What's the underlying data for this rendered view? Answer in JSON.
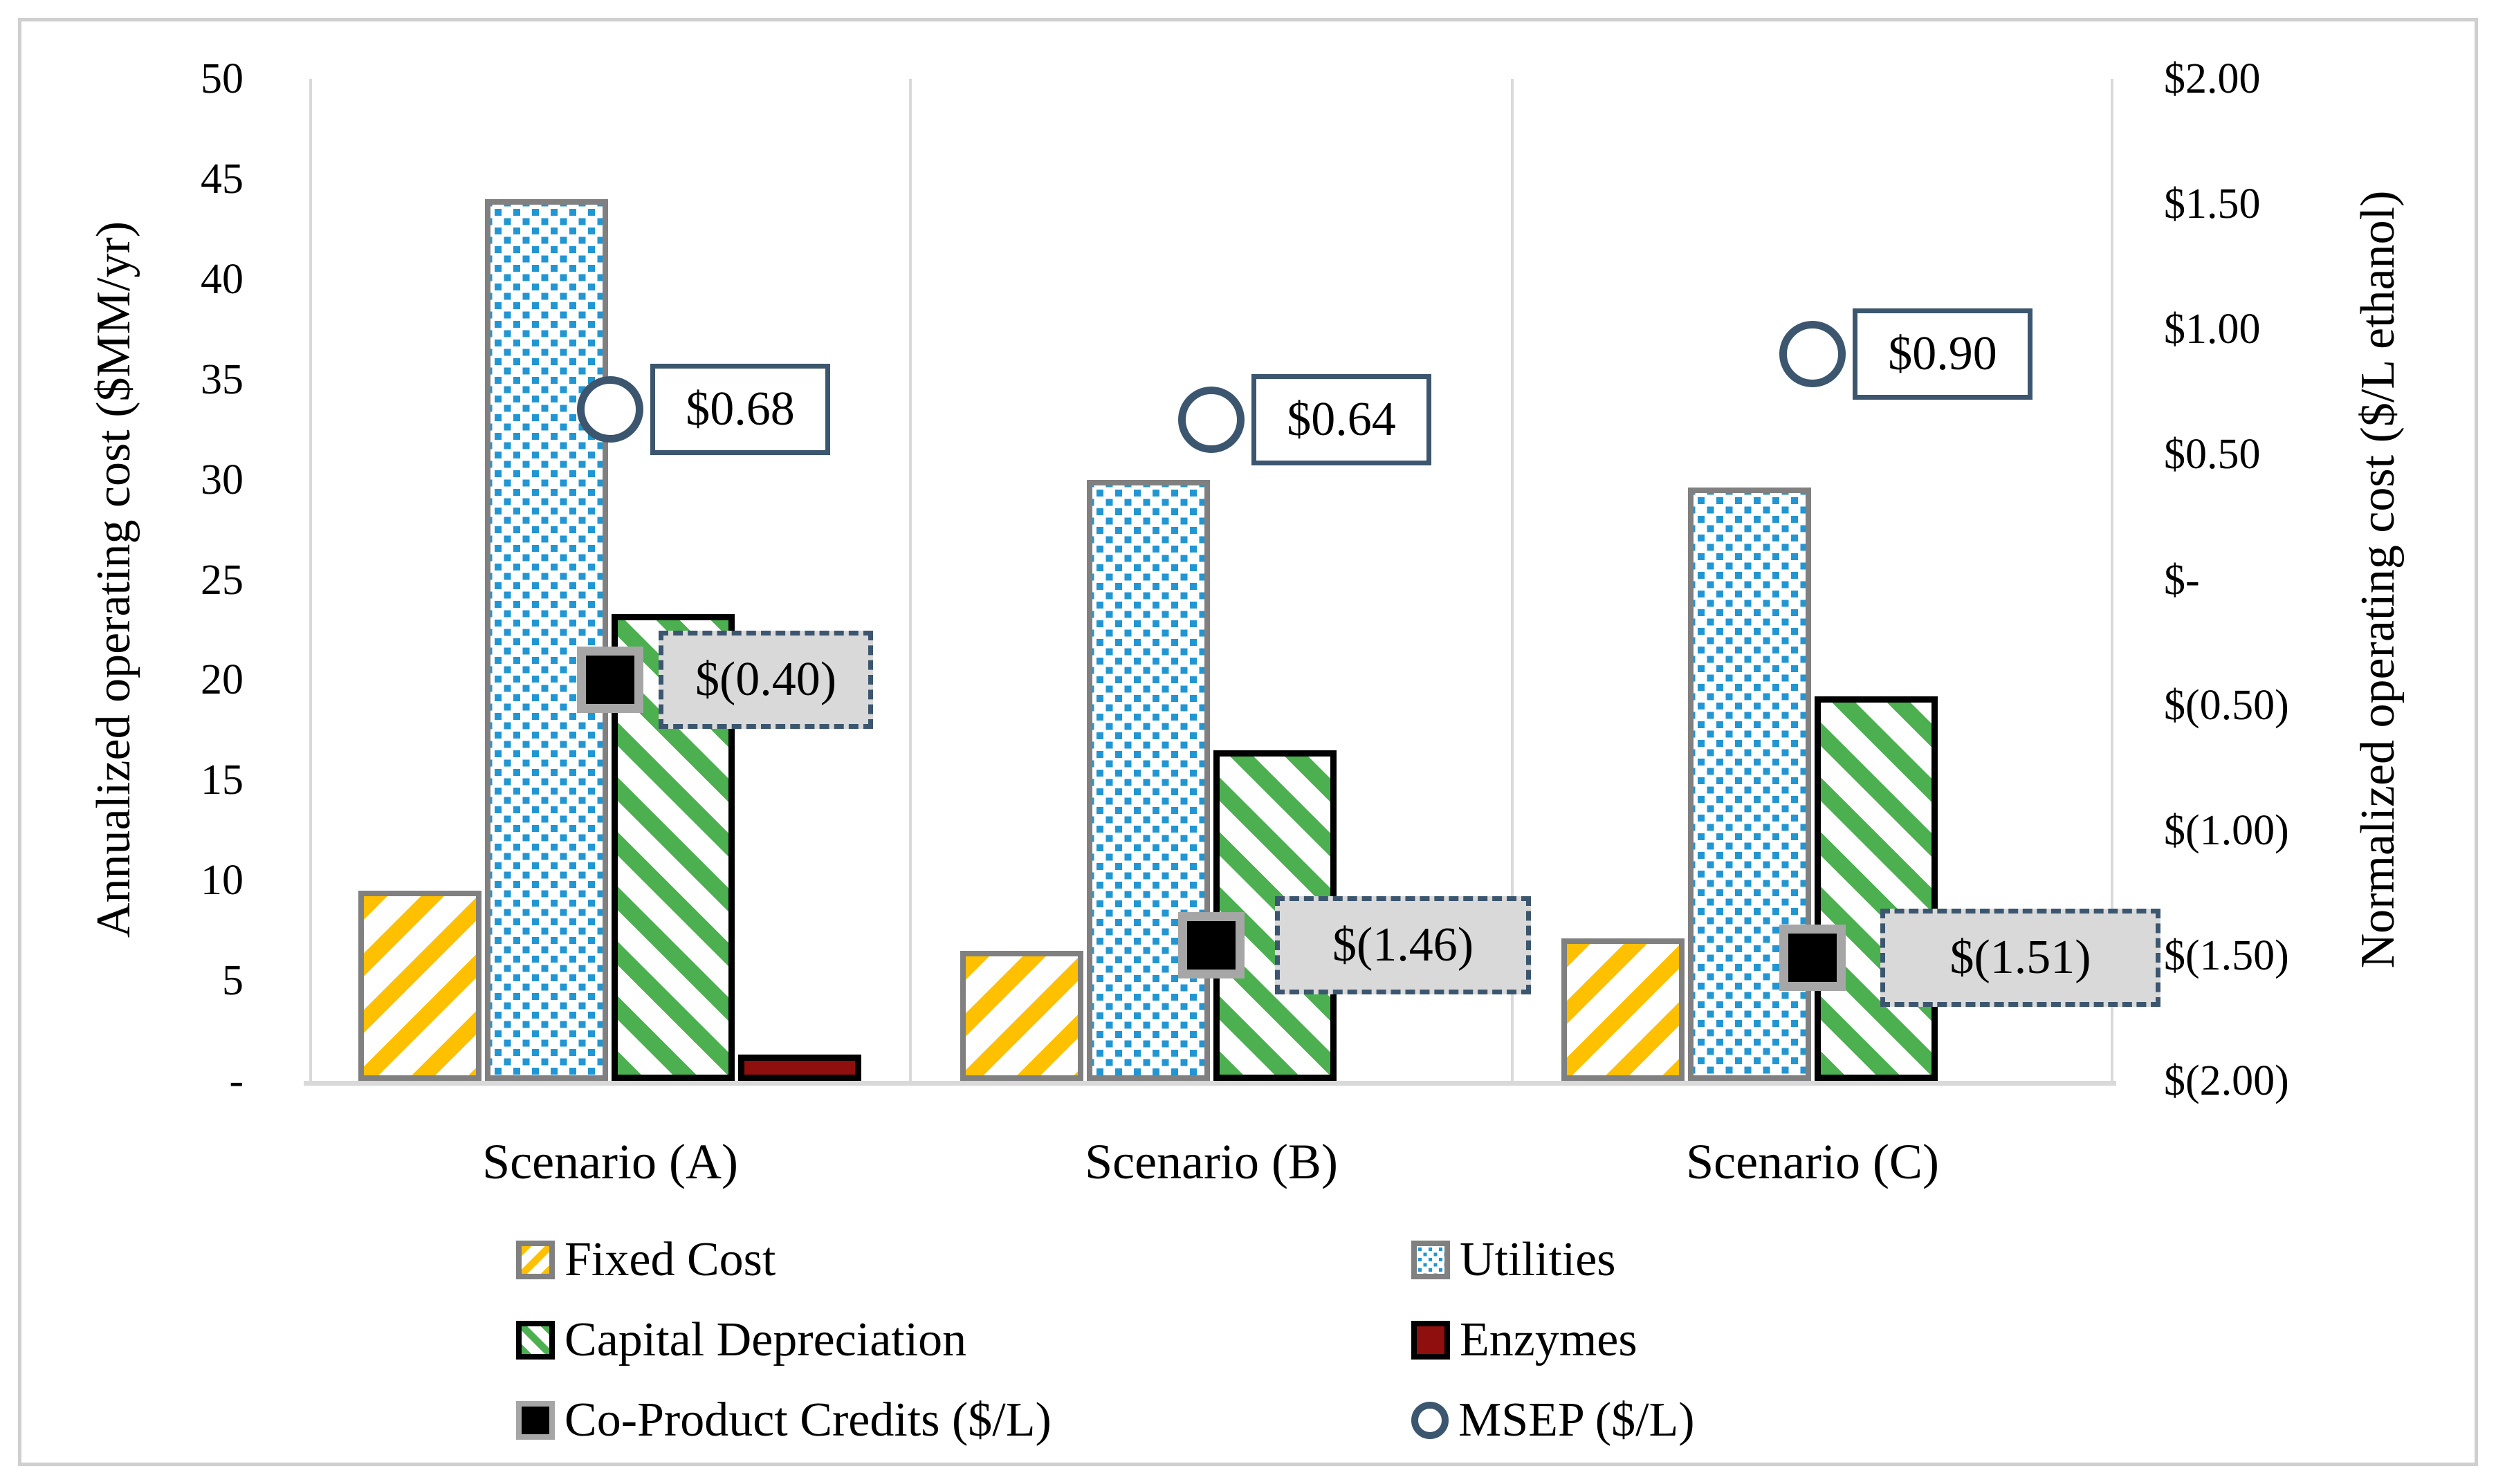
{
  "colors": {
    "yellow": "#FFC000",
    "blue": "#2196D3",
    "green": "#4CAF50",
    "red": "#8F0E0E",
    "navy": "#3B566E",
    "grayborder": "#808080",
    "markergray": "#A6A6A6",
    "lightline": "#D9D9D9",
    "boxgray": "#D9D9D9",
    "frame": "#D0CECE"
  },
  "chart_data": {
    "type": "bar",
    "subtype": "grouped bars with overlaid scatter points on secondary axis",
    "categories": [
      "Scenario (A)",
      "Scenario (B)",
      "Scenario (C)"
    ],
    "left_axis": {
      "title": "Annualized operating cost ($MM/yr)",
      "range": [
        0,
        50
      ],
      "ticks": [
        {
          "label": "50",
          "value": 50
        },
        {
          "label": "45",
          "value": 45
        },
        {
          "label": "40",
          "value": 40
        },
        {
          "label": "35",
          "value": 35
        },
        {
          "label": "30",
          "value": 30
        },
        {
          "label": "25",
          "value": 25
        },
        {
          "label": "20",
          "value": 20
        },
        {
          "label": "15",
          "value": 15
        },
        {
          "label": "10",
          "value": 10
        },
        {
          "label": "5",
          "value": 5
        },
        {
          "label": "-",
          "value": 0
        }
      ]
    },
    "right_axis": {
      "title": "Normalized operating cost ($/L ethanol)",
      "range": [
        -2,
        2
      ],
      "ticks": [
        {
          "label": "$2.00",
          "value": 2
        },
        {
          "label": "$1.50",
          "value": 1.5
        },
        {
          "label": "$1.00",
          "value": 1
        },
        {
          "label": "$0.50",
          "value": 0.5
        },
        {
          "label": "$-",
          "value": 0
        },
        {
          "label": "$(0.50)",
          "value": -0.5
        },
        {
          "label": "$(1.00)",
          "value": -1
        },
        {
          "label": "$(1.50)",
          "value": -1.5
        },
        {
          "label": "$(2.00)",
          "value": -2
        }
      ]
    },
    "bar_series": [
      {
        "key": "fixed",
        "name": "Fixed Cost",
        "values": [
          9.5,
          6.5,
          7.1
        ]
      },
      {
        "key": "util",
        "name": "Utilities",
        "values": [
          44,
          30,
          29.6
        ]
      },
      {
        "key": "cap",
        "name": "Capital Depreciation",
        "values": [
          23.3,
          16.5,
          19.2
        ]
      },
      {
        "key": "enz",
        "name": "Enzymes",
        "values": [
          1.3,
          0,
          0
        ]
      }
    ],
    "point_series": [
      {
        "key": "coprod",
        "name": "Co-Product Credits ($/L)",
        "marker": "black-square",
        "values": [
          -0.4,
          -1.46,
          -1.51
        ],
        "labels": [
          "$(0.40)",
          "$(1.46)",
          "$(1.51)"
        ]
      },
      {
        "key": "msep",
        "name": "MSEP ($/L)",
        "marker": "open-circle",
        "values": [
          0.68,
          0.64,
          0.9
        ],
        "labels": [
          "$0.68",
          "$0.64",
          "$0.90"
        ]
      }
    ],
    "legend": {
      "position": "bottom, two columns",
      "col1": [
        {
          "key": "fixed",
          "label": "Fixed Cost"
        },
        {
          "key": "cap",
          "label": "Capital Depreciation"
        },
        {
          "key": "coprod",
          "label": "Co-Product Credits ($/L)"
        }
      ],
      "col2": [
        {
          "key": "util",
          "label": "Utilities"
        },
        {
          "key": "enz",
          "label": "Enzymes"
        },
        {
          "key": "msep",
          "label": "MSEP ($/L)"
        }
      ]
    },
    "grid": "no horizontal gridlines; light vertical separators between category panels"
  }
}
